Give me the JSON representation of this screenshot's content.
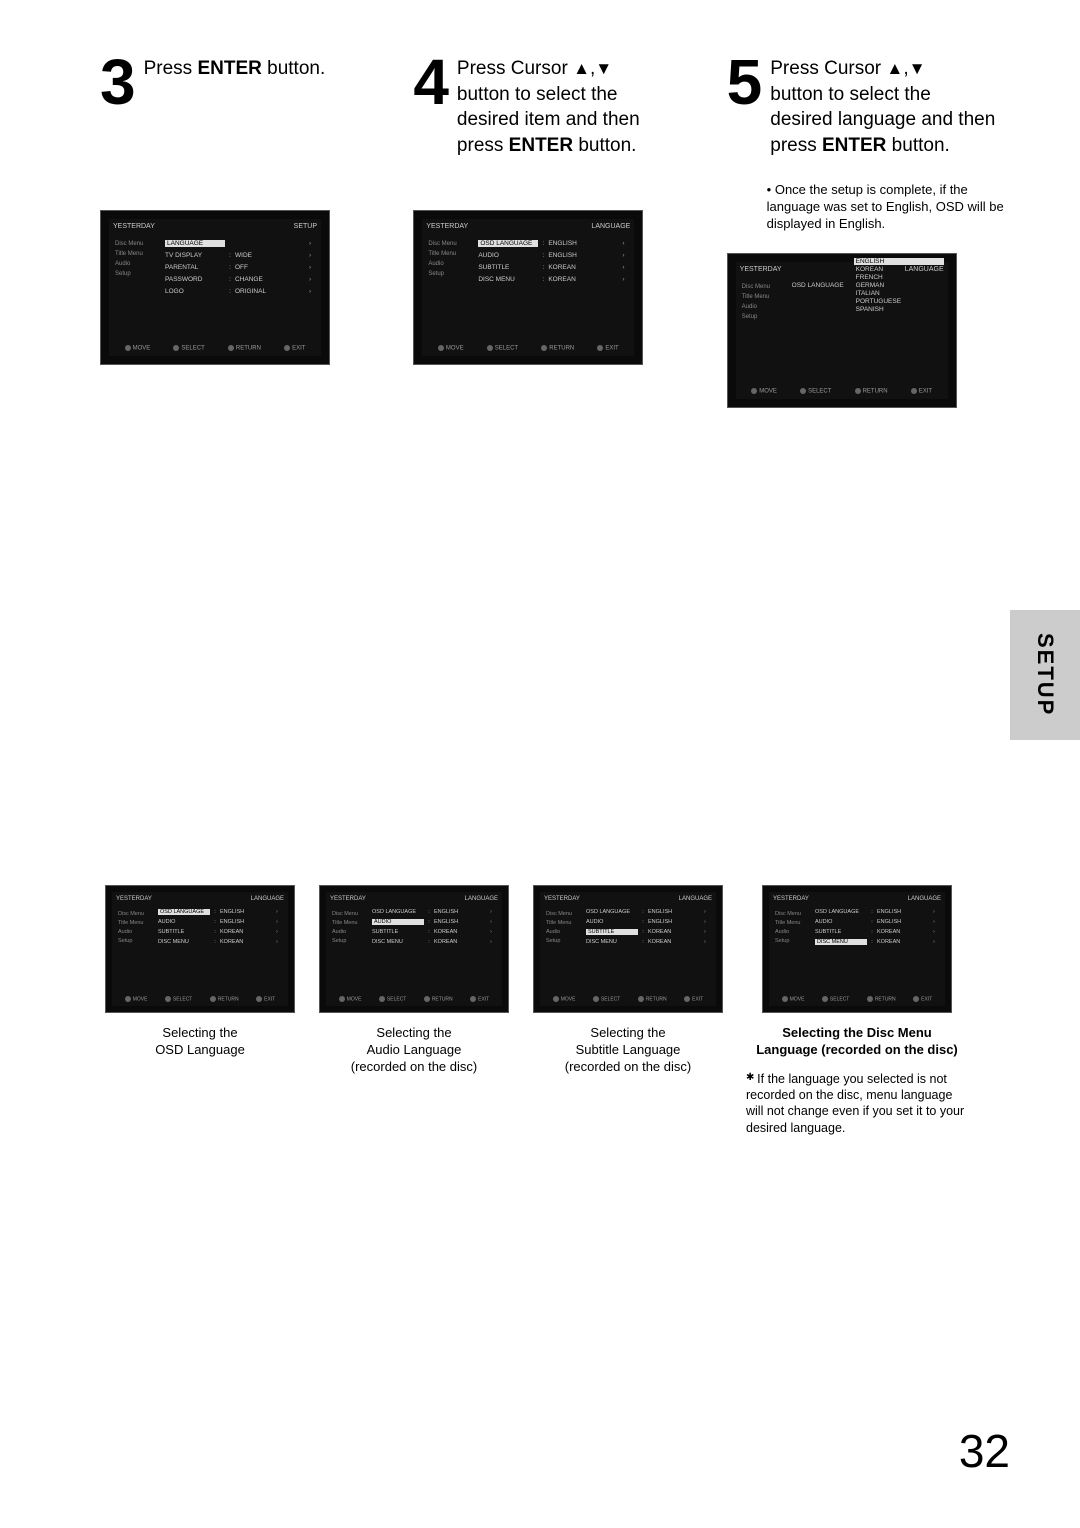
{
  "steps": {
    "s3": {
      "num": "3",
      "text_before": "Press ",
      "bold": "ENTER",
      "text_after": " button."
    },
    "s4": {
      "num": "4",
      "line1a": "Press Cursor ",
      "line1b": ",",
      "line2": "button to select the",
      "line3": "desired item and then",
      "line4a": "press ",
      "line4b": "ENTER",
      "line4c": " button."
    },
    "s5": {
      "num": "5",
      "line1a": "Press Cursor ",
      "line1b": ",",
      "line2": "button to select the",
      "line3": "desired language and then",
      "line4a": "press ",
      "line4b": "ENTER",
      "line4c": " button.",
      "note": "Once the setup is complete, if the language was set to English, OSD will be displayed in English."
    }
  },
  "screens": {
    "titleSetup": "SETUP",
    "titleLanguage": "LANGUAGE",
    "leftMenu": [
      "Disc Menu",
      "Title Menu",
      "Audio",
      "Setup"
    ],
    "leftIconLabel": "YESTERDAY",
    "footer": [
      "MOVE",
      "SELECT",
      "RETURN",
      "EXIT"
    ],
    "s3rows": [
      {
        "lbl": "LANGUAGE",
        "val": "",
        "hl": true
      },
      {
        "lbl": "TV DISPLAY",
        "col": ":",
        "val": "WIDE"
      },
      {
        "lbl": "PARENTAL",
        "col": ":",
        "val": "OFF"
      },
      {
        "lbl": "PASSWORD",
        "col": ":",
        "val": "CHANGE"
      },
      {
        "lbl": "LOGO",
        "col": ":",
        "val": "ORIGINAL"
      }
    ],
    "langRows": [
      {
        "lbl": "OSD LANGUAGE",
        "col": ":",
        "val": "ENGLISH"
      },
      {
        "lbl": "AUDIO",
        "col": ":",
        "val": "ENGLISH"
      },
      {
        "lbl": "SUBTITLE",
        "col": ":",
        "val": "KOREAN"
      },
      {
        "lbl": "DISC MENU",
        "col": ":",
        "val": "KOREAN"
      }
    ],
    "langList": [
      "ENGLISH",
      "KOREAN",
      "FRENCH",
      "GERMAN",
      "ITALIAN",
      "PORTUGUESE",
      "SPANISH"
    ]
  },
  "bottom": {
    "c1": "Selecting the\nOSD Language",
    "c2": "Selecting the\nAudio Language\n(recorded on the disc)",
    "c3": "Selecting the\nSubtitle Language\n(recorded on the disc)",
    "c4": "Selecting the Disc Menu\nLanguage (recorded on the disc)",
    "note": "If the language you selected is not recorded on the disc, menu language will not change even if you set it to your desired language."
  },
  "sideTab": "SETUP",
  "pageNum": "32",
  "glyphs": {
    "triUp": "▲",
    "triDown": "▼",
    "arr": "›"
  }
}
